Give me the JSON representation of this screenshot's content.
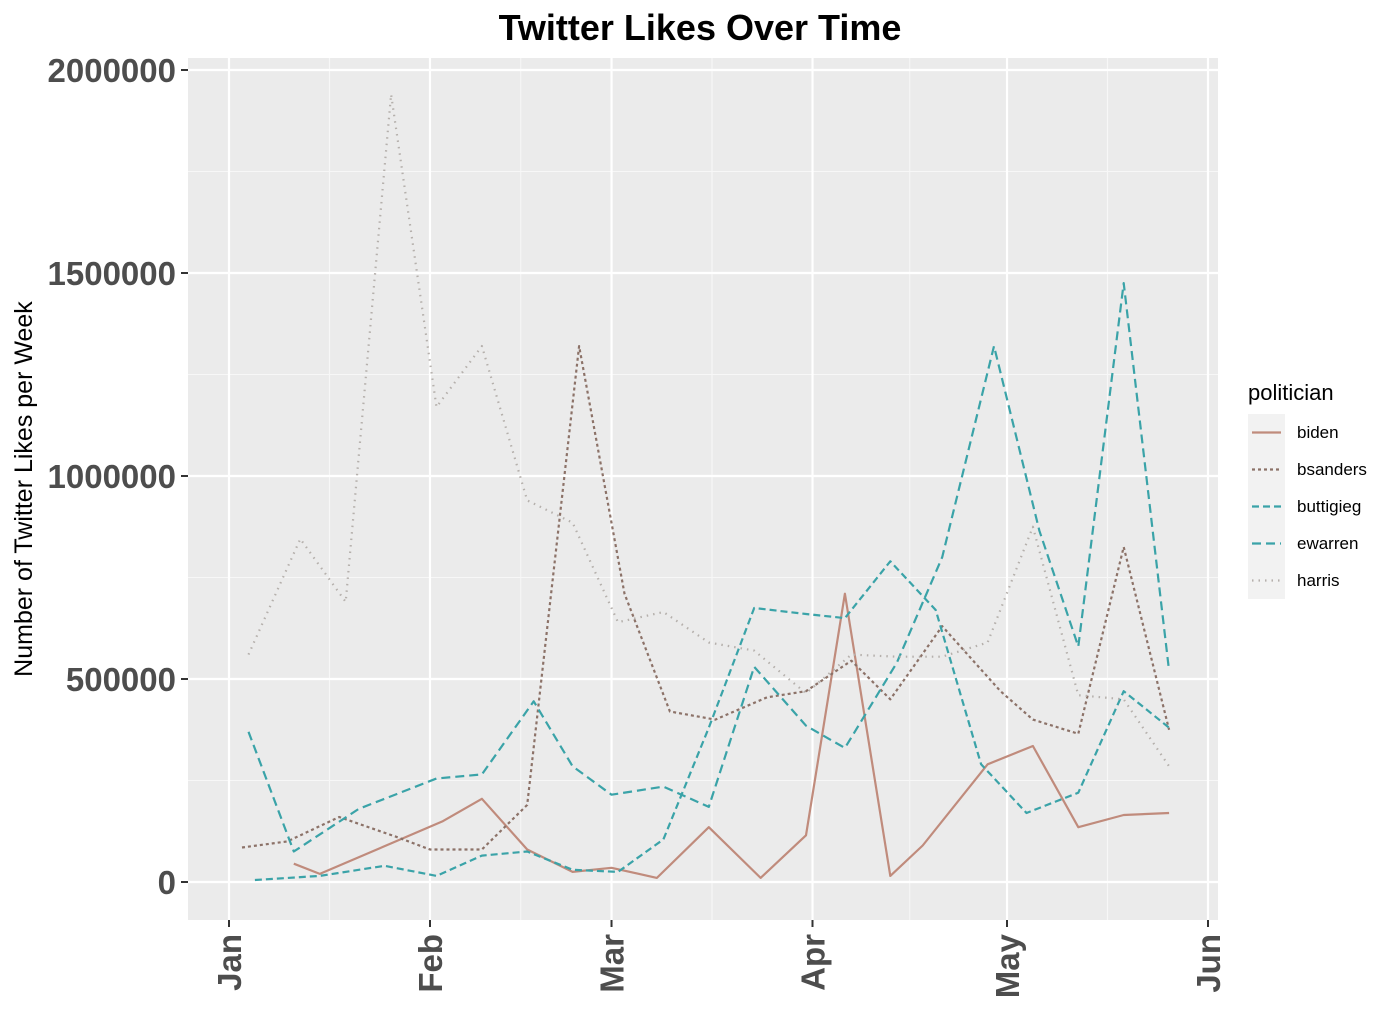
{
  "chart_data": {
    "type": "line",
    "title": "Twitter Likes Over Time",
    "xlabel": "",
    "ylabel": "Number of Twitter Likes per Week",
    "x_axis_type": "date",
    "xlim": [
      "2019-01-01",
      "2019-06-01"
    ],
    "ylim": [
      -100000,
      2050000
    ],
    "yticks": [
      0,
      500000,
      1000000,
      1500000,
      2000000
    ],
    "ytick_labels": [
      "0",
      "500000",
      "1000000",
      "1500000",
      "2000000"
    ],
    "xticks": [
      "2019-01-01",
      "2019-02-01",
      "2019-03-01",
      "2019-04-01",
      "2019-05-01",
      "2019-06-01"
    ],
    "xtick_labels": [
      "Jan",
      "Feb",
      "Mar",
      "Apr",
      "May",
      "Jun"
    ],
    "grid": true,
    "legend": {
      "title": "politician",
      "placement": "right"
    },
    "series": [
      {
        "name": "biden",
        "color": "#c08b7c",
        "dash": "solid",
        "points": [
          [
            "2019-01-11",
            45000
          ],
          [
            "2019-01-15",
            20000
          ],
          [
            "2019-01-26",
            95000
          ],
          [
            "2019-02-03",
            150000
          ],
          [
            "2019-02-09",
            205000
          ],
          [
            "2019-02-16",
            80000
          ],
          [
            "2019-02-23",
            25000
          ],
          [
            "2019-03-01",
            35000
          ],
          [
            "2019-03-08",
            10000
          ],
          [
            "2019-03-16",
            135000
          ],
          [
            "2019-03-24",
            10000
          ],
          [
            "2019-03-31",
            115000
          ],
          [
            "2019-04-06",
            710000
          ],
          [
            "2019-04-13",
            15000
          ],
          [
            "2019-04-18",
            90000
          ],
          [
            "2019-04-28",
            290000
          ],
          [
            "2019-05-05",
            335000
          ],
          [
            "2019-05-12",
            135000
          ],
          [
            "2019-05-19",
            165000
          ],
          [
            "2019-05-26",
            170000
          ]
        ]
      },
      {
        "name": "bsanders",
        "color": "#8c7268",
        "dash": "dashed-fine",
        "points": [
          [
            "2019-01-03",
            85000
          ],
          [
            "2019-01-10",
            100000
          ],
          [
            "2019-01-18",
            160000
          ],
          [
            "2019-01-27",
            110000
          ],
          [
            "2019-02-01",
            80000
          ],
          [
            "2019-02-09",
            80000
          ],
          [
            "2019-02-16",
            190000
          ],
          [
            "2019-02-24",
            1320000
          ],
          [
            "2019-03-03",
            710000
          ],
          [
            "2019-03-10",
            420000
          ],
          [
            "2019-03-17",
            400000
          ],
          [
            "2019-03-25",
            455000
          ],
          [
            "2019-03-31",
            470000
          ],
          [
            "2019-04-07",
            545000
          ],
          [
            "2019-04-13",
            450000
          ],
          [
            "2019-04-21",
            630000
          ],
          [
            "2019-04-30",
            470000
          ],
          [
            "2019-05-05",
            400000
          ],
          [
            "2019-05-12",
            365000
          ],
          [
            "2019-05-19",
            825000
          ],
          [
            "2019-05-26",
            375000
          ]
        ]
      },
      {
        "name": "buttigieg",
        "color": "#3aa3a8",
        "dash": "dashed",
        "points": [
          [
            "2019-01-05",
            5000
          ],
          [
            "2019-01-15",
            15000
          ],
          [
            "2019-01-25",
            40000
          ],
          [
            "2019-02-02",
            15000
          ],
          [
            "2019-02-09",
            65000
          ],
          [
            "2019-02-16",
            75000
          ],
          [
            "2019-02-23",
            30000
          ],
          [
            "2019-03-02",
            25000
          ],
          [
            "2019-03-09",
            105000
          ],
          [
            "2019-03-16",
            380000
          ],
          [
            "2019-03-23",
            675000
          ],
          [
            "2019-03-31",
            660000
          ],
          [
            "2019-04-06",
            650000
          ],
          [
            "2019-04-13",
            790000
          ],
          [
            "2019-04-20",
            670000
          ],
          [
            "2019-04-27",
            290000
          ],
          [
            "2019-05-04",
            170000
          ],
          [
            "2019-05-12",
            220000
          ],
          [
            "2019-05-19",
            470000
          ],
          [
            "2019-05-26",
            380000
          ]
        ]
      },
      {
        "name": "ewarren",
        "color": "#3aa3a8",
        "dash": "dashed-long",
        "points": [
          [
            "2019-01-04",
            370000
          ],
          [
            "2019-01-11",
            75000
          ],
          [
            "2019-01-21",
            180000
          ],
          [
            "2019-02-02",
            255000
          ],
          [
            "2019-02-09",
            265000
          ],
          [
            "2019-02-17",
            445000
          ],
          [
            "2019-02-23",
            285000
          ],
          [
            "2019-03-01",
            215000
          ],
          [
            "2019-03-09",
            235000
          ],
          [
            "2019-03-16",
            185000
          ],
          [
            "2019-03-23",
            530000
          ],
          [
            "2019-03-31",
            385000
          ],
          [
            "2019-04-06",
            330000
          ],
          [
            "2019-04-14",
            540000
          ],
          [
            "2019-04-21",
            800000
          ],
          [
            "2019-04-29",
            1320000
          ],
          [
            "2019-05-06",
            865000
          ],
          [
            "2019-05-12",
            580000
          ],
          [
            "2019-05-19",
            1475000
          ],
          [
            "2019-05-26",
            520000
          ]
        ]
      },
      {
        "name": "harris",
        "color": "#b5b0ac",
        "dash": "dotted",
        "points": [
          [
            "2019-01-04",
            560000
          ],
          [
            "2019-01-12",
            845000
          ],
          [
            "2019-01-19",
            690000
          ],
          [
            "2019-01-26",
            1940000
          ],
          [
            "2019-02-02",
            1170000
          ],
          [
            "2019-02-09",
            1320000
          ],
          [
            "2019-02-16",
            940000
          ],
          [
            "2019-02-23",
            885000
          ],
          [
            "2019-03-02",
            640000
          ],
          [
            "2019-03-09",
            665000
          ],
          [
            "2019-03-16",
            590000
          ],
          [
            "2019-03-23",
            570000
          ],
          [
            "2019-03-31",
            465000
          ],
          [
            "2019-04-07",
            560000
          ],
          [
            "2019-04-14",
            555000
          ],
          [
            "2019-04-21",
            555000
          ],
          [
            "2019-04-28",
            590000
          ],
          [
            "2019-05-05",
            875000
          ],
          [
            "2019-05-12",
            460000
          ],
          [
            "2019-05-19",
            450000
          ],
          [
            "2019-05-26",
            285000
          ]
        ]
      }
    ]
  }
}
